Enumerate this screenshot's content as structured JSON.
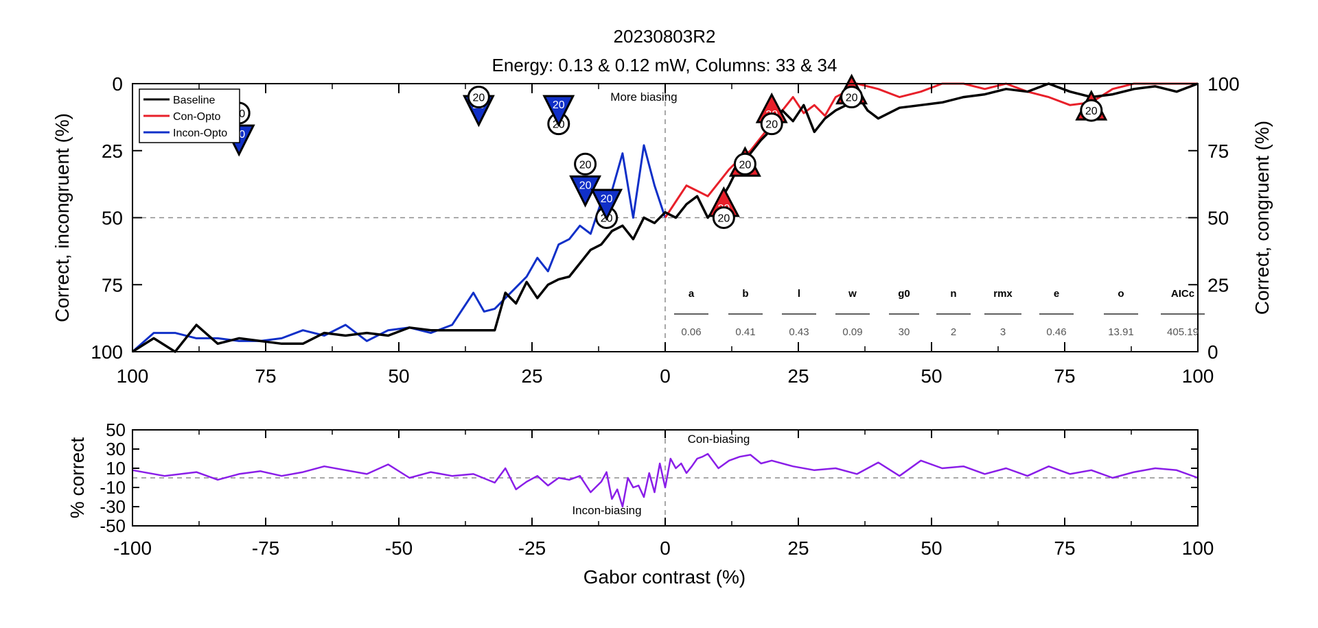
{
  "title_line1": "20230803R2",
  "title_line2": "Energy: 0.13 & 0.12 mW, Columns: 33 & 34",
  "colors": {
    "baseline": "#000000",
    "con_opto": "#e8202a",
    "incon_opto": "#1030c8",
    "difference": "#8a1ee8",
    "guide": "#8c8c8c"
  },
  "chart_data": [
    {
      "type": "line",
      "ylabel_left": "Correct, incongruent (%)",
      "ylabel_right": "Correct, congruent (%)",
      "xlim": [
        -100,
        100
      ],
      "ylim": [
        0,
        100
      ],
      "x_ticks": [
        -100,
        -75,
        -50,
        -25,
        0,
        25,
        50,
        75,
        100
      ],
      "x_tick_labels": [
        "100",
        "75",
        "50",
        "25",
        "0",
        "25",
        "50",
        "75",
        "100"
      ],
      "y_ticks_left": [
        "0",
        "25",
        "50",
        "75",
        "100"
      ],
      "y_ticks_right": [
        "100",
        "75",
        "50",
        "25",
        "0"
      ],
      "legend_position": "top-left",
      "annotation": "More biasing",
      "series": [
        {
          "name": "Baseline",
          "x": [
            -100,
            -96,
            -92,
            -88,
            -84,
            -80,
            -76,
            -72,
            -68,
            -64,
            -60,
            -56,
            -52,
            -48,
            -44,
            -40,
            -36,
            -32,
            -30,
            -28,
            -26,
            -24,
            -22,
            -20,
            -18,
            -16,
            -14,
            -12,
            -10,
            -8,
            -6,
            -4,
            -2,
            0,
            2,
            4,
            6,
            8,
            10,
            12,
            14,
            16,
            18,
            20,
            22,
            24,
            26,
            28,
            30,
            32,
            34,
            36,
            38,
            40,
            44,
            48,
            52,
            56,
            60,
            64,
            68,
            72,
            76,
            80,
            84,
            88,
            92,
            96,
            100
          ],
          "y": [
            0,
            5,
            0,
            10,
            3,
            5,
            4,
            3,
            3,
            7,
            6,
            7,
            6,
            9,
            8,
            8,
            8,
            8,
            22,
            18,
            26,
            20,
            25,
            27,
            28,
            33,
            38,
            40,
            45,
            47,
            42,
            50,
            48,
            52,
            50,
            55,
            58,
            50,
            55,
            62,
            70,
            74,
            79,
            83,
            90,
            86,
            92,
            82,
            87,
            90,
            92,
            96,
            90,
            87,
            91,
            92,
            93,
            95,
            96,
            98,
            97,
            100,
            97,
            95,
            96,
            98,
            99,
            97,
            100
          ]
        },
        {
          "name": "Con-Opto",
          "x": [
            0,
            2,
            4,
            6,
            8,
            10,
            12,
            14,
            16,
            18,
            20,
            22,
            24,
            26,
            28,
            30,
            32,
            34,
            36,
            40,
            44,
            48,
            52,
            56,
            60,
            64,
            68,
            72,
            76,
            80,
            84,
            88,
            92,
            96,
            100
          ],
          "y": [
            50,
            56,
            62,
            60,
            58,
            63,
            68,
            72,
            75,
            80,
            85,
            90,
            95,
            89,
            92,
            88,
            95,
            97,
            100,
            98,
            95,
            97,
            100,
            100,
            98,
            100,
            97,
            95,
            92,
            93,
            98,
            100,
            100,
            100,
            100
          ]
        },
        {
          "name": "Incon-Opto",
          "x": [
            -100,
            -96,
            -92,
            -88,
            -84,
            -80,
            -76,
            -72,
            -68,
            -64,
            -60,
            -56,
            -52,
            -48,
            -44,
            -40,
            -36,
            -34,
            -32,
            -30,
            -28,
            -26,
            -24,
            -22,
            -20,
            -18,
            -16,
            -14,
            -12,
            -10,
            -8,
            -6,
            -4,
            -2,
            0
          ],
          "y": [
            0,
            7,
            7,
            5,
            5,
            4,
            4,
            5,
            8,
            6,
            10,
            4,
            8,
            9,
            7,
            10,
            22,
            15,
            16,
            20,
            24,
            28,
            35,
            30,
            40,
            42,
            47,
            44,
            56,
            60,
            74,
            50,
            77,
            62,
            50
          ]
        }
      ],
      "markers": [
        {
          "series": "Incon-Opto",
          "shape": "triangle-down",
          "label": "20",
          "x": -80,
          "y": 79
        },
        {
          "series": "Baseline",
          "shape": "circle",
          "label": "20",
          "x": -80,
          "y": 89
        },
        {
          "series": "Incon-Opto",
          "shape": "triangle-down",
          "label": "20",
          "x": -35,
          "y": 90
        },
        {
          "series": "Baseline",
          "shape": "circle",
          "label": "20",
          "x": -35,
          "y": 95
        },
        {
          "series": "Baseline",
          "shape": "circle",
          "label": "20",
          "x": -20,
          "y": 85
        },
        {
          "series": "Incon-Opto",
          "shape": "triangle-down",
          "label": "20",
          "x": -20,
          "y": 90
        },
        {
          "series": "Incon-Opto",
          "shape": "triangle-down",
          "label": "20",
          "x": -15,
          "y": 60
        },
        {
          "series": "Baseline",
          "shape": "circle",
          "label": "20",
          "x": -15,
          "y": 70
        },
        {
          "series": "Baseline",
          "shape": "circle",
          "label": "20",
          "x": -11,
          "y": 50
        },
        {
          "series": "Incon-Opto",
          "shape": "triangle-down",
          "label": "20",
          "x": -11,
          "y": 55
        },
        {
          "series": "Con-Opto",
          "shape": "triangle-up",
          "label": "20",
          "x": 11,
          "y": 55
        },
        {
          "series": "Baseline",
          "shape": "circle",
          "label": "20",
          "x": 11,
          "y": 50
        },
        {
          "series": "Con-Opto",
          "shape": "triangle-up",
          "label": "20",
          "x": 15,
          "y": 70
        },
        {
          "series": "Baseline",
          "shape": "circle",
          "label": "20",
          "x": 15,
          "y": 70
        },
        {
          "series": "Con-Opto",
          "shape": "triangle-up",
          "label": "20",
          "x": 20,
          "y": 90
        },
        {
          "series": "Baseline",
          "shape": "circle",
          "label": "20",
          "x": 20,
          "y": 85
        },
        {
          "series": "Con-Opto",
          "shape": "triangle-up",
          "label": "20",
          "x": 35,
          "y": 97
        },
        {
          "series": "Baseline",
          "shape": "circle",
          "label": "20",
          "x": 35,
          "y": 95
        },
        {
          "series": "Con-Opto",
          "shape": "triangle-up",
          "label": "20",
          "x": 80,
          "y": 91
        },
        {
          "series": "Baseline",
          "shape": "circle",
          "label": "20",
          "x": 80,
          "y": 90
        }
      ],
      "fit_table": {
        "headers": [
          "a",
          "b",
          "l",
          "w",
          "g0",
          "n",
          "rmx",
          "e",
          "o",
          "AICc"
        ],
        "values": [
          "0.06",
          "0.41",
          "0.43",
          "0.09",
          "30",
          "2",
          "3",
          "0.46",
          "13.91",
          "405.19"
        ]
      }
    },
    {
      "type": "line",
      "xlabel": "Gabor contrast (%)",
      "ylabel": "% correct",
      "xlim": [
        -100,
        100
      ],
      "ylim": [
        -50,
        50
      ],
      "x_ticks": [
        -100,
        -75,
        -50,
        -25,
        0,
        25,
        50,
        75,
        100
      ],
      "x_tick_labels": [
        "-100",
        "-75",
        "-50",
        "-25",
        "0",
        "25",
        "50",
        "75",
        "100"
      ],
      "y_ticks": [
        50,
        30,
        10,
        -10,
        -30,
        -50
      ],
      "y_tick_labels": [
        "50",
        "30",
        "10",
        "-10",
        "-30",
        "-50"
      ],
      "annotations": [
        "Con-biasing",
        "Incon-biasing"
      ],
      "series": [
        {
          "x": [
            -100,
            -94,
            -88,
            -84,
            -80,
            -76,
            -72,
            -68,
            -64,
            -60,
            -56,
            -52,
            -48,
            -44,
            -40,
            -36,
            -32,
            -30,
            -28,
            -26,
            -24,
            -22,
            -20,
            -18,
            -16,
            -14,
            -12,
            -11,
            -10,
            -9,
            -8,
            -7,
            -6,
            -5,
            -4,
            -3,
            -2,
            -1,
            0,
            1,
            2,
            3,
            4,
            5,
            6,
            7,
            8,
            10,
            12,
            14,
            16,
            18,
            20,
            24,
            28,
            32,
            36,
            40,
            44,
            48,
            52,
            56,
            60,
            64,
            68,
            72,
            76,
            80,
            84,
            88,
            92,
            96,
            100
          ],
          "y": [
            8,
            2,
            6,
            -2,
            4,
            7,
            2,
            6,
            12,
            8,
            4,
            14,
            0,
            6,
            2,
            4,
            -5,
            10,
            -12,
            -4,
            2,
            -8,
            0,
            -2,
            2,
            -15,
            -4,
            6,
            -22,
            -12,
            -30,
            0,
            -10,
            -8,
            -20,
            5,
            -15,
            15,
            -10,
            20,
            10,
            15,
            5,
            12,
            20,
            22,
            25,
            10,
            18,
            22,
            24,
            15,
            18,
            12,
            8,
            10,
            4,
            16,
            2,
            18,
            10,
            12,
            4,
            10,
            2,
            12,
            4,
            8,
            0,
            6,
            10,
            8,
            0
          ]
        }
      ]
    }
  ]
}
